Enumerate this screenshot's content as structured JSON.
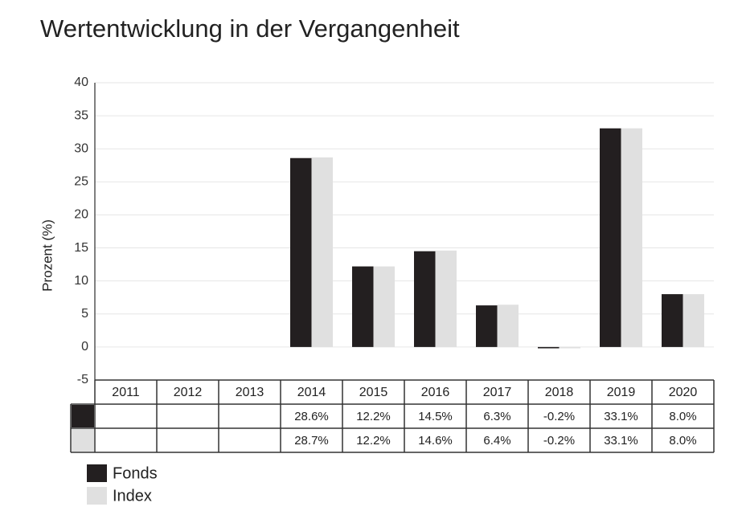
{
  "chart_data": {
    "type": "bar",
    "title": "Wertentwicklung in der Vergangenheit",
    "ylabel": "Prozent (%)",
    "categories": [
      "2011",
      "2012",
      "2013",
      "2014",
      "2015",
      "2016",
      "2017",
      "2018",
      "2019",
      "2020"
    ],
    "series": [
      {
        "name": "Fonds",
        "color": "#231f20",
        "values": [
          null,
          null,
          null,
          28.6,
          12.2,
          14.5,
          6.3,
          -0.2,
          33.1,
          8.0
        ],
        "value_labels": [
          null,
          null,
          null,
          "28.6%",
          "12.2%",
          "14.5%",
          "6.3%",
          "-0.2%",
          "33.1%",
          "8.0%"
        ]
      },
      {
        "name": "Index",
        "color": "#e0e0e0",
        "values": [
          null,
          null,
          null,
          28.7,
          12.2,
          14.6,
          6.4,
          -0.2,
          33.1,
          8.0
        ],
        "value_labels": [
          null,
          null,
          null,
          "28.7%",
          "12.2%",
          "14.6%",
          "6.4%",
          "-0.2%",
          "33.1%",
          "8.0%"
        ]
      }
    ],
    "ylim": [
      -5,
      40
    ],
    "yticks": [
      -5,
      0,
      5,
      10,
      15,
      20,
      25,
      30,
      35,
      40
    ],
    "grid": true
  }
}
